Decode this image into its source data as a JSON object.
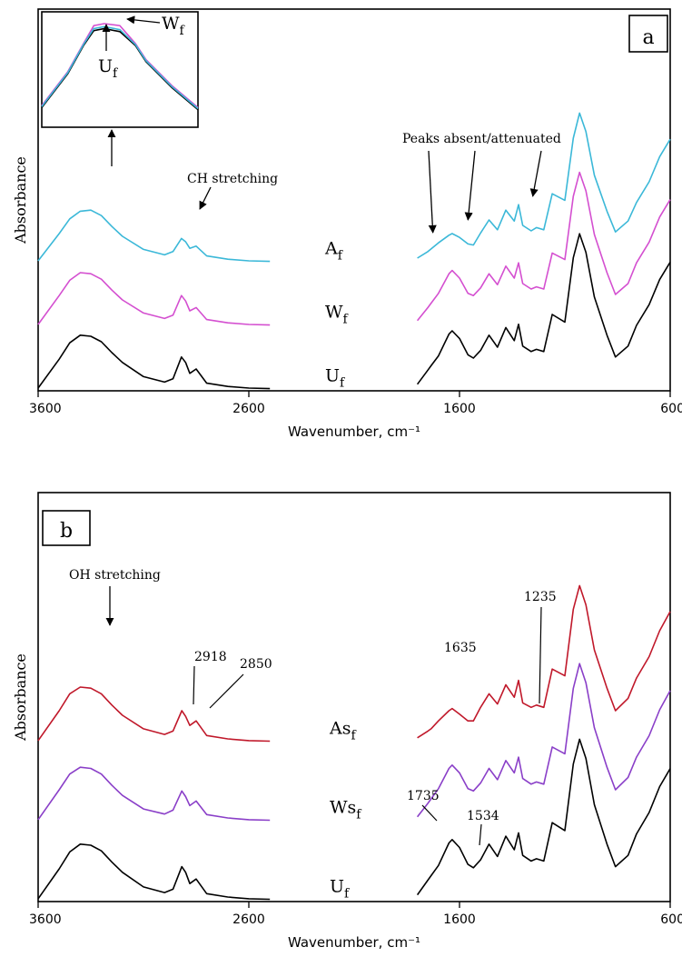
{
  "chart_data": [
    {
      "type": "line",
      "panel_label": "a",
      "xlabel": "Wavenumber, cm⁻¹",
      "ylabel": "Absorbance",
      "xlim": [
        3600,
        600
      ],
      "x_reversed": true,
      "x_ticks": [
        3600,
        2600,
        1600,
        600
      ],
      "x_break": [
        2500,
        1800
      ],
      "y_ticks_shown": false,
      "grid": false,
      "series": [
        {
          "name": "A",
          "subscript": "f",
          "color": "#3bb8d8",
          "offset": 2.0,
          "x": [
            3600,
            3500,
            3450,
            3400,
            3350,
            3300,
            3250,
            3200,
            3100,
            3000,
            2960,
            2920,
            2900,
            2880,
            2850,
            2800,
            2700,
            2600,
            2500,
            1800,
            1750,
            1700,
            1650,
            1635,
            1600,
            1560,
            1534,
            1500,
            1460,
            1420,
            1380,
            1340,
            1320,
            1300,
            1260,
            1235,
            1200,
            1160,
            1100,
            1060,
            1030,
            1000,
            960,
            900,
            860,
            800,
            760,
            700,
            650,
            600
          ],
          "y": [
            0.05,
            0.55,
            0.82,
            0.96,
            0.98,
            0.88,
            0.68,
            0.5,
            0.26,
            0.16,
            0.22,
            0.46,
            0.4,
            0.28,
            0.32,
            0.14,
            0.08,
            0.05,
            0.04,
            0.1,
            0.22,
            0.38,
            0.52,
            0.55,
            0.48,
            0.36,
            0.34,
            0.56,
            0.8,
            0.62,
            0.98,
            0.78,
            1.08,
            0.7,
            0.6,
            0.66,
            0.62,
            1.28,
            1.16,
            2.3,
            2.76,
            2.42,
            1.62,
            0.96,
            0.58,
            0.78,
            1.12,
            1.5,
            1.96,
            2.28
          ]
        },
        {
          "name": "W",
          "subscript": "f",
          "color": "#d44fd0",
          "offset": 1.0,
          "x": [
            3600,
            3500,
            3450,
            3400,
            3350,
            3300,
            3250,
            3200,
            3100,
            3000,
            2960,
            2920,
            2900,
            2880,
            2850,
            2800,
            2700,
            2600,
            2500,
            1800,
            1750,
            1735,
            1700,
            1650,
            1635,
            1600,
            1560,
            1534,
            1500,
            1460,
            1420,
            1380,
            1340,
            1320,
            1300,
            1260,
            1235,
            1200,
            1160,
            1100,
            1060,
            1030,
            1000,
            960,
            900,
            860,
            800,
            760,
            700,
            650,
            600
          ],
          "y": [
            0.05,
            0.58,
            0.86,
            1.0,
            0.98,
            0.88,
            0.68,
            0.5,
            0.26,
            0.16,
            0.22,
            0.58,
            0.48,
            0.3,
            0.36,
            0.14,
            0.08,
            0.05,
            0.04,
            0.12,
            0.36,
            0.44,
            0.62,
            0.98,
            1.04,
            0.9,
            0.62,
            0.58,
            0.72,
            0.98,
            0.78,
            1.12,
            0.9,
            1.18,
            0.8,
            0.7,
            0.74,
            0.7,
            1.36,
            1.24,
            2.4,
            2.84,
            2.5,
            1.7,
            1.0,
            0.6,
            0.8,
            1.18,
            1.56,
            2.02,
            2.34
          ]
        },
        {
          "name": "U",
          "subscript": "f",
          "color": "#000000",
          "offset": 0.0,
          "x": [
            3600,
            3500,
            3450,
            3400,
            3350,
            3300,
            3250,
            3200,
            3100,
            3000,
            2960,
            2920,
            2900,
            2880,
            2850,
            2800,
            2700,
            2600,
            2500,
            1800,
            1750,
            1735,
            1700,
            1650,
            1635,
            1600,
            1560,
            1534,
            1500,
            1460,
            1420,
            1380,
            1340,
            1320,
            1300,
            1260,
            1235,
            1200,
            1160,
            1100,
            1060,
            1030,
            1000,
            960,
            900,
            860,
            800,
            760,
            700,
            650,
            600
          ],
          "y": [
            0.05,
            0.58,
            0.88,
            1.02,
            1.0,
            0.9,
            0.7,
            0.52,
            0.26,
            0.16,
            0.22,
            0.62,
            0.52,
            0.32,
            0.4,
            0.14,
            0.08,
            0.05,
            0.04,
            0.12,
            0.38,
            0.46,
            0.64,
            1.04,
            1.1,
            0.96,
            0.66,
            0.6,
            0.74,
            1.02,
            0.8,
            1.16,
            0.92,
            1.22,
            0.82,
            0.72,
            0.76,
            0.72,
            1.4,
            1.26,
            2.44,
            2.88,
            2.54,
            1.72,
            1.02,
            0.62,
            0.82,
            1.2,
            1.58,
            2.04,
            2.36
          ]
        }
      ],
      "annotations": [
        {
          "text": "CH stretching",
          "x": 2880
        },
        {
          "text": "Peaks absent/attenuated",
          "x_targets": [
            1735,
            1534,
            1235
          ]
        }
      ],
      "inset": {
        "labels": [
          {
            "name": "W",
            "subscript": "f"
          },
          {
            "name": "U",
            "subscript": "f"
          }
        ],
        "x_range": [
          3500,
          3200
        ],
        "series": [
          {
            "name": "W",
            "color": "#d44fd0",
            "x": [
              3500,
              3450,
              3420,
              3400,
              3380,
              3350,
              3320,
              3300,
              3250,
              3200
            ],
            "y": [
              0.18,
              0.52,
              0.8,
              0.98,
              1.0,
              0.98,
              0.8,
              0.64,
              0.38,
              0.16
            ]
          },
          {
            "name": "U",
            "color": "#000000",
            "x": [
              3500,
              3450,
              3420,
              3400,
              3380,
              3350,
              3320,
              3300,
              3250,
              3200
            ],
            "y": [
              0.16,
              0.5,
              0.78,
              0.93,
              0.95,
              0.92,
              0.78,
              0.62,
              0.36,
              0.14
            ]
          },
          {
            "name": "A",
            "color": "#3bb8d8",
            "x": [
              3500,
              3450,
              3420,
              3400,
              3380,
              3350,
              3320,
              3300,
              3250,
              3200
            ],
            "y": [
              0.17,
              0.51,
              0.79,
              0.95,
              0.97,
              0.94,
              0.79,
              0.63,
              0.37,
              0.15
            ]
          }
        ]
      }
    },
    {
      "type": "line",
      "panel_label": "b",
      "xlabel": "Wavenumber, cm⁻¹",
      "ylabel": "Absorbance",
      "xlim": [
        3600,
        600
      ],
      "x_reversed": true,
      "x_ticks": [
        3600,
        2600,
        1600,
        600
      ],
      "x_break": [
        2500,
        1800
      ],
      "y_ticks_shown": false,
      "grid": false,
      "series": [
        {
          "name": "As",
          "subscript": "f",
          "color": "#c0182a",
          "offset": 2.0,
          "x": [
            3600,
            3500,
            3450,
            3400,
            3350,
            3300,
            3250,
            3200,
            3100,
            3000,
            2960,
            2918,
            2900,
            2880,
            2850,
            2800,
            2700,
            2600,
            2500,
            1800,
            1750,
            1735,
            1700,
            1650,
            1635,
            1600,
            1560,
            1534,
            1500,
            1460,
            1420,
            1380,
            1340,
            1320,
            1300,
            1260,
            1235,
            1200,
            1160,
            1100,
            1060,
            1030,
            1000,
            960,
            900,
            860,
            800,
            760,
            700,
            650,
            600
          ],
          "y": [
            0.05,
            0.58,
            0.88,
            1.0,
            0.98,
            0.88,
            0.68,
            0.5,
            0.26,
            0.16,
            0.22,
            0.58,
            0.48,
            0.32,
            0.4,
            0.14,
            0.08,
            0.05,
            0.04,
            0.1,
            0.22,
            0.26,
            0.4,
            0.58,
            0.62,
            0.52,
            0.4,
            0.4,
            0.64,
            0.88,
            0.7,
            1.04,
            0.82,
            1.12,
            0.72,
            0.64,
            0.68,
            0.64,
            1.32,
            1.2,
            2.38,
            2.8,
            2.46,
            1.66,
            0.98,
            0.58,
            0.8,
            1.16,
            1.54,
            2.0,
            2.34
          ]
        },
        {
          "name": "Ws",
          "subscript": "f",
          "color": "#8a3fc8",
          "offset": 1.0,
          "x": [
            3600,
            3500,
            3450,
            3400,
            3350,
            3300,
            3250,
            3200,
            3100,
            3000,
            2960,
            2918,
            2900,
            2880,
            2850,
            2800,
            2700,
            2600,
            2500,
            1800,
            1750,
            1735,
            1700,
            1650,
            1635,
            1600,
            1560,
            1534,
            1500,
            1460,
            1420,
            1380,
            1340,
            1320,
            1300,
            1260,
            1235,
            1200,
            1160,
            1100,
            1060,
            1030,
            1000,
            960,
            900,
            860,
            800,
            760,
            700,
            650,
            600
          ],
          "y": [
            0.05,
            0.58,
            0.86,
            0.98,
            0.96,
            0.86,
            0.66,
            0.48,
            0.24,
            0.15,
            0.22,
            0.56,
            0.46,
            0.3,
            0.38,
            0.14,
            0.08,
            0.05,
            0.04,
            0.1,
            0.34,
            0.42,
            0.6,
            0.96,
            1.02,
            0.88,
            0.6,
            0.56,
            0.7,
            0.96,
            0.76,
            1.1,
            0.88,
            1.16,
            0.78,
            0.68,
            0.72,
            0.68,
            1.34,
            1.22,
            2.38,
            2.82,
            2.48,
            1.68,
            0.98,
            0.58,
            0.8,
            1.16,
            1.54,
            2.0,
            2.34
          ]
        },
        {
          "name": "U",
          "subscript": "f",
          "color": "#000000",
          "offset": 0.0,
          "x": [
            3600,
            3500,
            3450,
            3400,
            3350,
            3300,
            3250,
            3200,
            3100,
            3000,
            2960,
            2918,
            2900,
            2880,
            2850,
            2800,
            2700,
            2600,
            2500,
            1800,
            1750,
            1735,
            1700,
            1650,
            1635,
            1600,
            1560,
            1534,
            1500,
            1460,
            1420,
            1380,
            1340,
            1320,
            1300,
            1260,
            1235,
            1200,
            1160,
            1100,
            1060,
            1030,
            1000,
            960,
            900,
            860,
            800,
            760,
            700,
            650,
            600
          ],
          "y": [
            0.05,
            0.58,
            0.88,
            1.02,
            1.0,
            0.9,
            0.7,
            0.52,
            0.26,
            0.16,
            0.22,
            0.62,
            0.52,
            0.32,
            0.4,
            0.14,
            0.08,
            0.05,
            0.04,
            0.12,
            0.38,
            0.46,
            0.64,
            1.04,
            1.1,
            0.96,
            0.66,
            0.6,
            0.74,
            1.02,
            0.8,
            1.16,
            0.92,
            1.22,
            0.82,
            0.72,
            0.76,
            0.72,
            1.4,
            1.26,
            2.44,
            2.88,
            2.54,
            1.72,
            1.02,
            0.62,
            0.82,
            1.2,
            1.58,
            2.04,
            2.36
          ]
        }
      ],
      "annotations": [
        {
          "text": "OH stretching",
          "x": 3400
        },
        {
          "text": "2918",
          "x": 2918
        },
        {
          "text": "2850",
          "x": 2850
        },
        {
          "text": "1635",
          "x": 1635
        },
        {
          "text": "1235",
          "x": 1235
        },
        {
          "text": "1735",
          "x": 1735
        },
        {
          "text": "1534",
          "x": 1534
        }
      ]
    }
  ]
}
